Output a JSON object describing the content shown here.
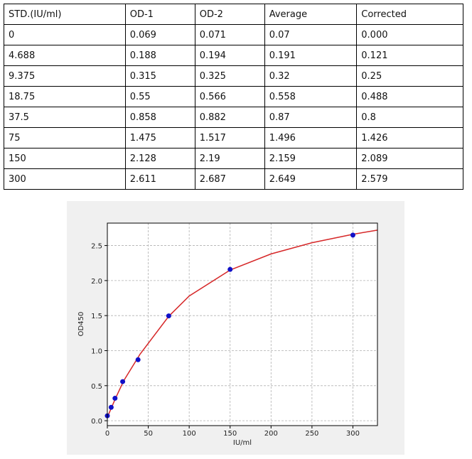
{
  "table": {
    "header": [
      "STD.(IU/ml)",
      "OD-1",
      "OD-2",
      "Average",
      "Corrected"
    ],
    "rows": [
      [
        "0",
        "0.069",
        "0.071",
        "0.07",
        "0.000"
      ],
      [
        "4.688",
        "0.188",
        "0.194",
        "0.191",
        "0.121"
      ],
      [
        "9.375",
        "0.315",
        "0.325",
        "0.32",
        "0.25"
      ],
      [
        "18.75",
        "0.55",
        "0.566",
        "0.558",
        "0.488"
      ],
      [
        "37.5",
        "0.858",
        "0.882",
        "0.87",
        "0.8"
      ],
      [
        "75",
        "1.475",
        "1.517",
        "1.496",
        "1.426"
      ],
      [
        "150",
        "2.128",
        "2.19",
        "2.159",
        "2.089"
      ],
      [
        "300",
        "2.611",
        "2.687",
        "2.649",
        "2.579"
      ]
    ]
  },
  "chart_data": {
    "type": "scatter",
    "xlabel": "IU/ml",
    "ylabel": "OD450",
    "xlim": [
      0,
      330
    ],
    "ylim": [
      -0.07,
      2.82
    ],
    "xticks": [
      0,
      50,
      100,
      150,
      200,
      250,
      300
    ],
    "yticks": [
      {
        "value": 0,
        "label": "0.0"
      },
      0.5,
      {
        "value": 1,
        "label": "1.0"
      },
      1.5,
      {
        "value": 2,
        "label": "2.0"
      },
      2.5
    ],
    "grid": true,
    "series": [
      {
        "type": "scatter",
        "color": "#1010c8",
        "x": [
          0,
          4.688,
          9.375,
          18.75,
          37.5,
          75,
          150,
          300
        ],
        "values": [
          0.07,
          0.191,
          0.32,
          0.558,
          0.87,
          1.496,
          2.159,
          2.649
        ]
      },
      {
        "type": "line",
        "color": "#d62728",
        "x": [
          0,
          10,
          20,
          40,
          75,
          100,
          150,
          200,
          250,
          300,
          330
        ],
        "values": [
          0.05,
          0.32,
          0.57,
          0.95,
          1.49,
          1.78,
          2.15,
          2.38,
          2.54,
          2.66,
          2.72
        ]
      }
    ]
  }
}
